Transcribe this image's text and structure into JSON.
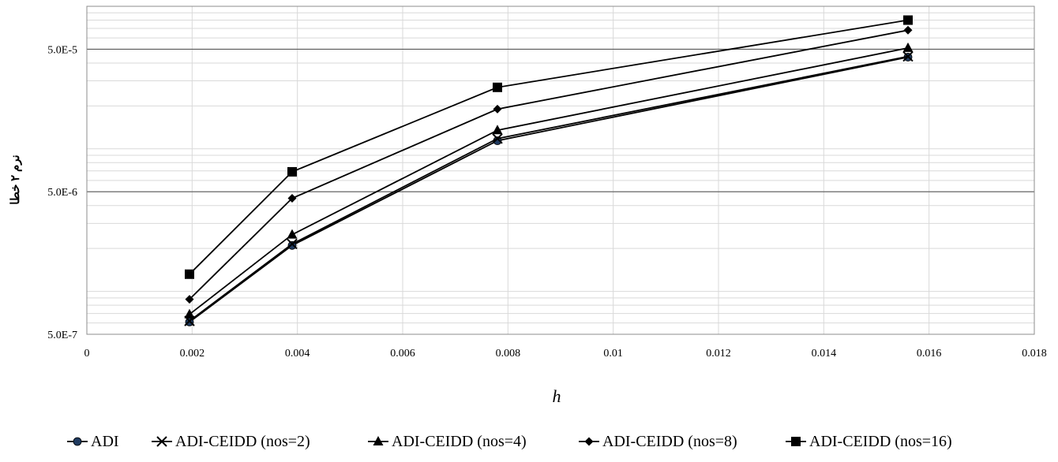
{
  "chart_data": {
    "type": "line",
    "title": "",
    "xlabel": "h",
    "ylabel": "نرم ۲ خطا",
    "x_scale": "linear",
    "y_scale": "log",
    "xlim": [
      0,
      0.018
    ],
    "ylim": [
      5e-07,
      0.0001
    ],
    "x_ticks": [
      0,
      0.002,
      0.004,
      0.006,
      0.008,
      0.01,
      0.012,
      0.014,
      0.016,
      0.018
    ],
    "x_tick_labels": [
      "0",
      "0.002",
      "0.004",
      "0.006",
      "0.008",
      "0.01",
      "0.012",
      "0.014",
      "0.016",
      "0.018"
    ],
    "y_major_ticks": [
      5e-07,
      5e-06,
      5e-05
    ],
    "y_tick_labels": [
      "5.0E-7",
      "5.0E-6",
      "5.0E-5"
    ],
    "grid": true,
    "legend_position": "bottom",
    "x": [
      0.00195,
      0.0039,
      0.0078,
      0.0156
    ],
    "series": [
      {
        "name": "ADI",
        "marker": "circle",
        "color": "#1f3a5f",
        "values": [
          6.1e-07,
          2.1e-06,
          1.14e-05,
          4.4e-05
        ]
      },
      {
        "name": "ADI-CEIDD (nos=2)",
        "marker": "x",
        "color": "#000000",
        "values": [
          6.2e-07,
          2.15e-06,
          1.18e-05,
          4.45e-05
        ]
      },
      {
        "name": "ADI-CEIDD (nos=4)",
        "marker": "triangle",
        "color": "#000000",
        "values": [
          6.9e-07,
          2.5e-06,
          1.35e-05,
          5.1e-05
        ]
      },
      {
        "name": "ADI-CEIDD (nos=8)",
        "marker": "diamond",
        "color": "#000000",
        "values": [
          8.8e-07,
          4.5e-06,
          1.9e-05,
          6.8e-05
        ]
      },
      {
        "name": "ADI-CEIDD (nos=16)",
        "marker": "square",
        "color": "#000000",
        "values": [
          1.32e-06,
          6.9e-06,
          2.7e-05,
          8e-05
        ]
      }
    ]
  }
}
